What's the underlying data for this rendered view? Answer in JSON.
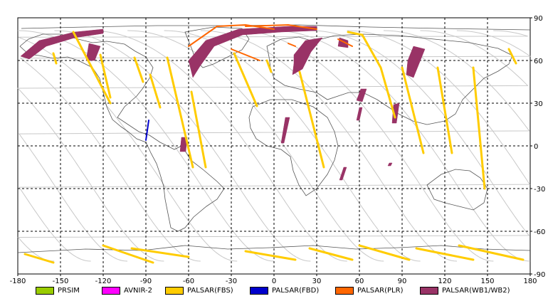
{
  "map": {
    "x_range": [
      -180,
      180
    ],
    "y_range": [
      -90,
      90
    ],
    "x_ticks": [
      -180,
      -150,
      -120,
      -90,
      -60,
      -30,
      0,
      30,
      60,
      90,
      120,
      150,
      180
    ],
    "y_ticks": [
      90,
      60,
      30,
      0,
      -30,
      -60,
      -90
    ],
    "x_tick_labels": [
      "-180",
      "-150",
      "-120",
      "-90",
      "-60",
      "-30",
      "0",
      "30",
      "60",
      "90",
      "120",
      "150",
      "180"
    ],
    "y_tick_labels": [
      "90",
      "60",
      "30",
      "0",
      "-30",
      "-60",
      "-90"
    ],
    "grid": true
  },
  "legend": [
    {
      "label": "PRSIM",
      "color": "#99cc00"
    },
    {
      "label": "AVNIR-2",
      "color": "#ff00ff"
    },
    {
      "label": "PALSAR(FBS)",
      "color": "#ffcc00"
    },
    {
      "label": "PALSAR(FBD)",
      "color": "#0000cc"
    },
    {
      "label": "PALSAR(PLR)",
      "color": "#ff6600"
    },
    {
      "label": "PALSAR(WB1/WB2)",
      "color": "#993366"
    }
  ],
  "swaths": {
    "wb": [
      {
        "pts": [
          [
            -178,
            63
          ],
          [
            -165,
            74
          ],
          [
            -140,
            80
          ],
          [
            -120,
            82
          ],
          [
            -120,
            79
          ],
          [
            -140,
            76
          ],
          [
            -160,
            70
          ],
          [
            -172,
            61
          ]
        ]
      },
      {
        "pts": [
          [
            -130,
            72
          ],
          [
            -122,
            70
          ],
          [
            -126,
            60
          ],
          [
            -132,
            60
          ]
        ]
      },
      {
        "pts": [
          [
            -60,
            60
          ],
          [
            -48,
            74
          ],
          [
            -25,
            82
          ],
          [
            10,
            84
          ],
          [
            30,
            84
          ],
          [
            30,
            81
          ],
          [
            5,
            80
          ],
          [
            -22,
            78
          ],
          [
            -42,
            70
          ],
          [
            -52,
            56
          ],
          [
            -57,
            48
          ]
        ]
      },
      {
        "pts": [
          [
            14,
            64
          ],
          [
            22,
            74
          ],
          [
            34,
            76
          ],
          [
            26,
            66
          ],
          [
            20,
            54
          ],
          [
            13,
            50
          ],
          [
            14,
            58
          ]
        ]
      },
      {
        "pts": [
          [
            46,
            76
          ],
          [
            52,
            74
          ],
          [
            52,
            69
          ],
          [
            45,
            70
          ]
        ]
      },
      {
        "pts": [
          [
            94,
            60
          ],
          [
            98,
            70
          ],
          [
            106,
            68
          ],
          [
            102,
            58
          ],
          [
            98,
            48
          ],
          [
            93,
            50
          ]
        ]
      },
      {
        "pts": [
          [
            61,
            40
          ],
          [
            65,
            40
          ],
          [
            62,
            31
          ],
          [
            58,
            32
          ]
        ]
      },
      {
        "pts": [
          [
            60,
            27
          ],
          [
            62,
            27
          ],
          [
            60,
            18
          ],
          [
            58,
            18
          ]
        ]
      },
      {
        "pts": [
          [
            84,
            29
          ],
          [
            88,
            30
          ],
          [
            86,
            16
          ],
          [
            83,
            16
          ]
        ]
      },
      {
        "pts": [
          [
            8,
            20
          ],
          [
            11,
            20
          ],
          [
            7,
            2
          ],
          [
            5,
            2
          ]
        ]
      },
      {
        "pts": [
          [
            -65,
            6
          ],
          [
            -61,
            6
          ],
          [
            -62,
            -4
          ],
          [
            -66,
            -4
          ]
        ]
      },
      {
        "pts": [
          [
            49,
            -15
          ],
          [
            51,
            -15
          ],
          [
            48,
            -24
          ],
          [
            46,
            -24
          ]
        ]
      },
      {
        "pts": [
          [
            81,
            -12
          ],
          [
            83,
            -12
          ],
          [
            82,
            -14
          ],
          [
            80,
            -14
          ]
        ]
      }
    ],
    "fbs": [
      {
        "pts": [
          [
            -155,
            65
          ],
          [
            -153,
            58
          ]
        ]
      },
      {
        "pts": [
          [
            -141,
            80
          ],
          [
            -115,
            30
          ]
        ]
      },
      {
        "pts": [
          [
            -122,
            64
          ],
          [
            -115,
            34
          ]
        ]
      },
      {
        "pts": [
          [
            -98,
            62
          ],
          [
            -92,
            45
          ]
        ]
      },
      {
        "pts": [
          [
            -87,
            50
          ],
          [
            -80,
            27
          ]
        ]
      },
      {
        "pts": [
          [
            -75,
            62
          ],
          [
            -57,
            -15
          ]
        ]
      },
      {
        "pts": [
          [
            -58,
            38
          ],
          [
            -48,
            -15
          ]
        ]
      },
      {
        "pts": [
          [
            -28,
            65
          ],
          [
            -12,
            28
          ]
        ]
      },
      {
        "pts": [
          [
            -5,
            60
          ],
          [
            -2,
            52
          ]
        ]
      },
      {
        "pts": [
          [
            18,
            52
          ],
          [
            35,
            -15
          ]
        ]
      },
      {
        "pts": [
          [
            52,
            80
          ],
          [
            62,
            78
          ],
          [
            75,
            55
          ],
          [
            85,
            20
          ]
        ]
      },
      {
        "pts": [
          [
            90,
            55
          ],
          [
            105,
            -5
          ]
        ]
      },
      {
        "pts": [
          [
            115,
            55
          ],
          [
            125,
            -5
          ]
        ]
      },
      {
        "pts": [
          [
            140,
            55
          ],
          [
            148,
            -30
          ]
        ]
      },
      {
        "pts": [
          [
            165,
            68
          ],
          [
            170,
            58
          ]
        ]
      },
      {
        "pts": [
          [
            -175,
            -76
          ],
          [
            -155,
            -82
          ]
        ]
      },
      {
        "pts": [
          [
            -120,
            -70
          ],
          [
            -85,
            -82
          ]
        ]
      },
      {
        "pts": [
          [
            -100,
            -72
          ],
          [
            -60,
            -78
          ]
        ]
      },
      {
        "pts": [
          [
            -20,
            -74
          ],
          [
            15,
            -80
          ]
        ]
      },
      {
        "pts": [
          [
            25,
            -72
          ],
          [
            55,
            -80
          ]
        ]
      },
      {
        "pts": [
          [
            60,
            -70
          ],
          [
            95,
            -80
          ]
        ]
      },
      {
        "pts": [
          [
            100,
            -72
          ],
          [
            140,
            -80
          ]
        ]
      },
      {
        "pts": [
          [
            130,
            -70
          ],
          [
            175,
            -80
          ]
        ]
      }
    ],
    "fbd": [
      {
        "pts": [
          [
            -88,
            18
          ],
          [
            -90,
            4
          ]
        ]
      }
    ],
    "plr": [
      {
        "pts": [
          [
            -60,
            70
          ],
          [
            -40,
            84
          ],
          [
            -20,
            85
          ],
          [
            0,
            82
          ]
        ]
      },
      {
        "pts": [
          [
            -20,
            84
          ],
          [
            10,
            85
          ],
          [
            30,
            82
          ]
        ]
      },
      {
        "pts": [
          [
            10,
            72
          ],
          [
            15,
            70
          ]
        ]
      },
      {
        "pts": [
          [
            45,
            75
          ],
          [
            55,
            70
          ]
        ]
      },
      {
        "pts": [
          [
            -30,
            68
          ],
          [
            -10,
            60
          ]
        ]
      }
    ]
  }
}
